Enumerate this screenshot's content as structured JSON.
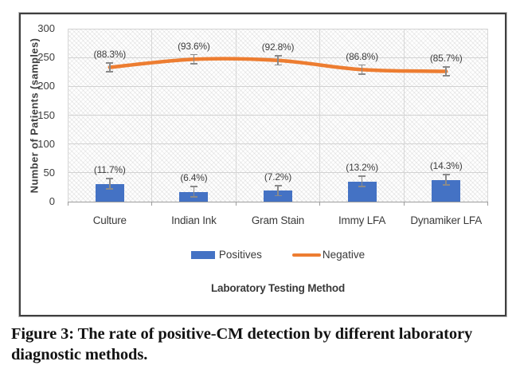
{
  "figure": {
    "caption": "Figure 3: The rate of positive-CM detection by different laboratory diagnostic methods."
  },
  "chart_data": {
    "type": "bar",
    "title": "",
    "categories": [
      "Culture",
      "Indian Ink",
      "Gram Stain",
      "Immy LFA",
      "Dynamiker LFA"
    ],
    "series": [
      {
        "name": "Positives",
        "type": "bar",
        "color": "#4472C4",
        "values": [
          31,
          17,
          19,
          35,
          38
        ],
        "data_labels": [
          "(11.7%)",
          "(6.4%)",
          "(7.2%)",
          "(13.2%)",
          "(14.3%)"
        ],
        "error": 10
      },
      {
        "name": "Negative",
        "type": "line",
        "color": "#ED7D31",
        "values": [
          233,
          247,
          245,
          229,
          226
        ],
        "data_labels": [
          "(88.3%)",
          "(93.6%)",
          "(92.8%)",
          "(86.8%)",
          "(85.7%)"
        ],
        "error": 9
      }
    ],
    "xlabel": "Laboratory Testing Method",
    "ylabel": "Number of Patients (samples)",
    "ylim": [
      0,
      300
    ],
    "yticks": [
      300,
      250,
      200,
      150,
      100,
      50,
      0
    ],
    "grid": true,
    "legend_position": "bottom",
    "plot_background": "diagonal-hatch",
    "error_bar_color": "#8a8a8a"
  }
}
